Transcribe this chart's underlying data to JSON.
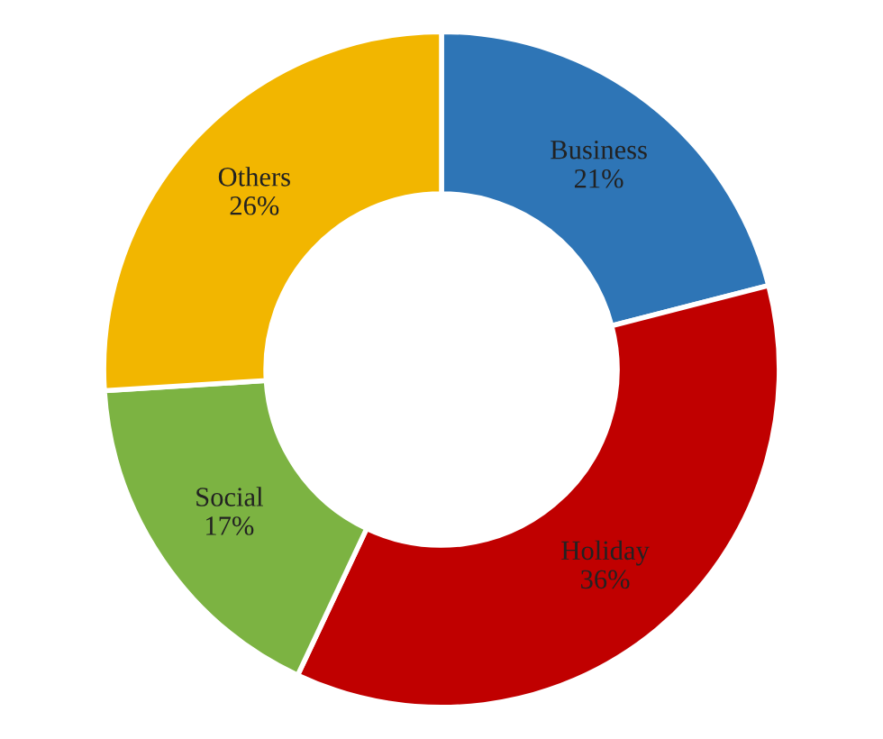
{
  "chart_data": {
    "type": "donut",
    "categories": [
      "Business",
      "Holiday",
      "Social",
      "Others"
    ],
    "values": [
      21,
      36,
      17,
      26
    ],
    "value_labels": [
      "21%",
      "36%",
      "17%",
      "26%"
    ],
    "colors": [
      "#2e75b6",
      "#c00000",
      "#7cb342",
      "#f2b600"
    ]
  }
}
